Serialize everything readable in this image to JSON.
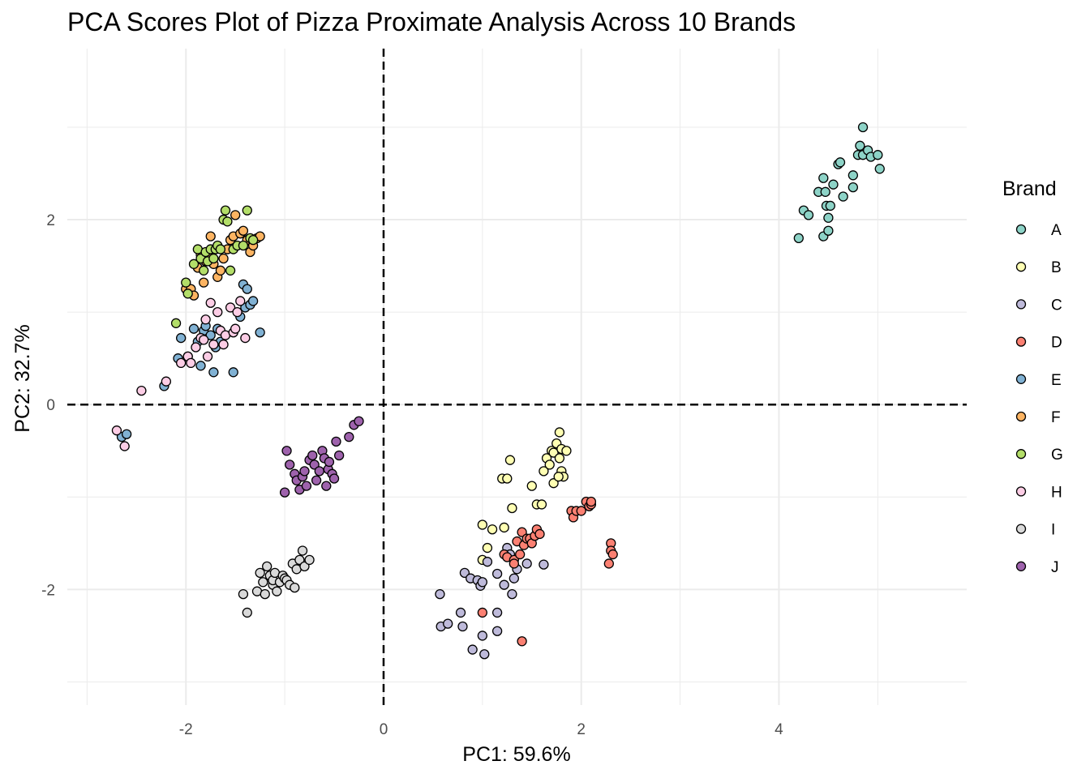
{
  "chart_data": {
    "type": "scatter",
    "title": "PCA Scores Plot of Pizza Proximate Analysis Across 10 Brands",
    "xlabel": "PC1: 59.6%",
    "ylabel": "PC2: 32.7%",
    "xlim": [
      -3.2,
      5.9
    ],
    "ylim": [
      -3.25,
      3.85
    ],
    "x_ticks": [
      -2,
      0,
      2,
      4
    ],
    "x_tick_labels": [
      "-2",
      "0",
      "2",
      "4"
    ],
    "y_ticks": [
      -2,
      0,
      2
    ],
    "y_tick_labels": [
      "-2",
      "0",
      "2"
    ],
    "grid": true,
    "reference_lines": {
      "x": 0,
      "y": 0,
      "style": "dashed"
    },
    "legend": {
      "title": "Brand",
      "position": "right"
    },
    "series": [
      {
        "name": "A",
        "color": "#8DD3C7",
        "points": [
          [
            4.2,
            1.8
          ],
          [
            4.25,
            2.1
          ],
          [
            4.3,
            2.05
          ],
          [
            4.4,
            2.3
          ],
          [
            4.45,
            1.82
          ],
          [
            4.45,
            2.45
          ],
          [
            4.47,
            2.3
          ],
          [
            4.48,
            2.15
          ],
          [
            4.5,
            2.02
          ],
          [
            4.5,
            1.88
          ],
          [
            4.52,
            2.15
          ],
          [
            4.55,
            2.38
          ],
          [
            4.6,
            2.6
          ],
          [
            4.62,
            2.62
          ],
          [
            4.65,
            2.25
          ],
          [
            4.75,
            2.35
          ],
          [
            4.75,
            2.48
          ],
          [
            4.8,
            2.7
          ],
          [
            4.82,
            2.8
          ],
          [
            4.85,
            3.0
          ],
          [
            4.85,
            2.7
          ],
          [
            4.9,
            2.75
          ],
          [
            4.93,
            2.68
          ],
          [
            5.0,
            2.7
          ],
          [
            5.02,
            2.55
          ]
        ]
      },
      {
        "name": "B",
        "color": "#FFFFB3",
        "points": [
          [
            1.0,
            -1.3
          ],
          [
            1.05,
            -1.55
          ],
          [
            1.1,
            -1.35
          ],
          [
            1.0,
            -1.68
          ],
          [
            1.2,
            -0.8
          ],
          [
            1.25,
            -0.8
          ],
          [
            1.22,
            -1.33
          ],
          [
            1.28,
            -0.6
          ],
          [
            1.3,
            -1.12
          ],
          [
            1.5,
            -0.88
          ],
          [
            1.55,
            -1.08
          ],
          [
            1.6,
            -1.08
          ],
          [
            1.62,
            -0.72
          ],
          [
            1.65,
            -0.58
          ],
          [
            1.68,
            -0.65
          ],
          [
            1.7,
            -0.5
          ],
          [
            1.72,
            -0.85
          ],
          [
            1.75,
            -0.42
          ],
          [
            1.78,
            -0.3
          ],
          [
            1.72,
            -0.52
          ],
          [
            1.78,
            -0.58
          ],
          [
            1.8,
            -0.48
          ],
          [
            1.8,
            -0.72
          ],
          [
            1.82,
            -0.78
          ],
          [
            1.85,
            -0.5
          ],
          [
            1.77,
            -0.78
          ]
        ]
      },
      {
        "name": "C",
        "color": "#BEBADA",
        "points": [
          [
            0.57,
            -2.05
          ],
          [
            0.58,
            -2.4
          ],
          [
            0.65,
            -2.37
          ],
          [
            0.78,
            -2.25
          ],
          [
            0.8,
            -2.4
          ],
          [
            0.82,
            -1.82
          ],
          [
            0.88,
            -1.88
          ],
          [
            0.9,
            -2.65
          ],
          [
            0.95,
            -1.9
          ],
          [
            0.98,
            -1.96
          ],
          [
            1.0,
            -1.92
          ],
          [
            1.0,
            -2.5
          ],
          [
            1.02,
            -2.7
          ],
          [
            1.05,
            -1.7
          ],
          [
            1.15,
            -1.83
          ],
          [
            1.15,
            -2.25
          ],
          [
            1.15,
            -2.45
          ],
          [
            1.22,
            -1.95
          ],
          [
            1.25,
            -1.55
          ],
          [
            1.28,
            -1.62
          ],
          [
            1.3,
            -2.05
          ],
          [
            1.32,
            -1.88
          ],
          [
            1.35,
            -1.78
          ],
          [
            1.45,
            -1.72
          ],
          [
            1.62,
            -1.73
          ]
        ]
      },
      {
        "name": "D",
        "color": "#FB8072",
        "points": [
          [
            1.0,
            -2.25
          ],
          [
            1.22,
            -1.62
          ],
          [
            1.25,
            -1.65
          ],
          [
            1.32,
            -1.68
          ],
          [
            1.32,
            -1.72
          ],
          [
            1.35,
            -1.48
          ],
          [
            1.38,
            -1.62
          ],
          [
            1.4,
            -1.38
          ],
          [
            1.42,
            -1.52
          ],
          [
            1.45,
            -1.45
          ],
          [
            1.48,
            -1.45
          ],
          [
            1.5,
            -1.5
          ],
          [
            1.53,
            -1.42
          ],
          [
            1.55,
            -1.35
          ],
          [
            1.58,
            -1.4
          ],
          [
            1.4,
            -2.56
          ],
          [
            1.9,
            -1.15
          ],
          [
            1.92,
            -1.22
          ],
          [
            1.95,
            -1.15
          ],
          [
            2.0,
            -1.15
          ],
          [
            2.05,
            -1.05
          ],
          [
            2.08,
            -1.1
          ],
          [
            2.1,
            -1.08
          ],
          [
            2.1,
            -1.05
          ],
          [
            2.28,
            -1.72
          ],
          [
            2.3,
            -1.5
          ],
          [
            2.3,
            -1.58
          ],
          [
            2.32,
            -1.62
          ]
        ]
      },
      {
        "name": "E",
        "color": "#80B1D3",
        "points": [
          [
            -2.65,
            -0.35
          ],
          [
            -2.6,
            -0.32
          ],
          [
            -2.22,
            0.2
          ],
          [
            -2.08,
            0.5
          ],
          [
            -2.05,
            0.72
          ],
          [
            -1.98,
            0.52
          ],
          [
            -1.92,
            0.82
          ],
          [
            -1.88,
            0.68
          ],
          [
            -1.85,
            0.42
          ],
          [
            -1.82,
            0.8
          ],
          [
            -1.8,
            0.85
          ],
          [
            -1.75,
            0.75
          ],
          [
            -1.72,
            0.35
          ],
          [
            -1.7,
            0.62
          ],
          [
            -1.68,
            0.82
          ],
          [
            -1.65,
            0.68
          ],
          [
            -1.52,
            0.35
          ],
          [
            -1.45,
            0.95
          ],
          [
            -1.42,
            1.3
          ],
          [
            -1.4,
            1.05
          ],
          [
            -1.38,
            1.25
          ],
          [
            -1.35,
            1.08
          ],
          [
            -1.32,
            1.12
          ],
          [
            -1.25,
            0.78
          ]
        ]
      },
      {
        "name": "F",
        "color": "#FDB462",
        "points": [
          [
            -2.0,
            1.25
          ],
          [
            -1.95,
            1.25
          ],
          [
            -1.92,
            1.18
          ],
          [
            -1.88,
            1.48
          ],
          [
            -1.85,
            1.62
          ],
          [
            -1.82,
            1.32
          ],
          [
            -1.8,
            1.55
          ],
          [
            -1.78,
            1.6
          ],
          [
            -1.75,
            1.82
          ],
          [
            -1.72,
            1.52
          ],
          [
            -1.68,
            1.38
          ],
          [
            -1.65,
            1.45
          ],
          [
            -1.62,
            1.58
          ],
          [
            -1.58,
            1.68
          ],
          [
            -1.55,
            1.78
          ],
          [
            -1.52,
            1.82
          ],
          [
            -1.5,
            2.05
          ],
          [
            -1.45,
            1.85
          ],
          [
            -1.42,
            1.88
          ],
          [
            -1.38,
            1.78
          ],
          [
            -1.35,
            1.65
          ],
          [
            -1.32,
            1.72
          ],
          [
            -1.28,
            1.8
          ],
          [
            -1.25,
            1.82
          ]
        ]
      },
      {
        "name": "G",
        "color": "#B3DE69",
        "points": [
          [
            -2.1,
            0.88
          ],
          [
            -2.0,
            1.32
          ],
          [
            -1.98,
            1.2
          ],
          [
            -1.92,
            1.52
          ],
          [
            -1.88,
            1.68
          ],
          [
            -1.85,
            1.58
          ],
          [
            -1.82,
            1.45
          ],
          [
            -1.8,
            1.65
          ],
          [
            -1.78,
            1.55
          ],
          [
            -1.75,
            1.68
          ],
          [
            -1.72,
            1.58
          ],
          [
            -1.7,
            1.68
          ],
          [
            -1.68,
            1.72
          ],
          [
            -1.65,
            1.68
          ],
          [
            -1.62,
            2.0
          ],
          [
            -1.6,
            2.1
          ],
          [
            -1.58,
            1.98
          ],
          [
            -1.55,
            1.45
          ],
          [
            -1.52,
            1.68
          ],
          [
            -1.48,
            1.72
          ],
          [
            -1.42,
            1.72
          ],
          [
            -1.38,
            2.1
          ],
          [
            -1.35,
            1.8
          ],
          [
            -1.32,
            1.78
          ]
        ]
      },
      {
        "name": "H",
        "color": "#FCCDE5",
        "points": [
          [
            -2.7,
            -0.28
          ],
          [
            -2.62,
            -0.45
          ],
          [
            -2.45,
            0.15
          ],
          [
            -2.2,
            0.25
          ],
          [
            -2.05,
            0.45
          ],
          [
            -1.98,
            0.52
          ],
          [
            -1.95,
            0.45
          ],
          [
            -1.9,
            0.62
          ],
          [
            -1.85,
            0.72
          ],
          [
            -1.82,
            0.7
          ],
          [
            -1.8,
            0.92
          ],
          [
            -1.78,
            0.52
          ],
          [
            -1.75,
            1.1
          ],
          [
            -1.72,
            0.65
          ],
          [
            -1.68,
            1.0
          ],
          [
            -1.65,
            0.8
          ],
          [
            -1.62,
            0.65
          ],
          [
            -1.6,
            0.75
          ],
          [
            -1.55,
            1.05
          ],
          [
            -1.52,
            0.78
          ],
          [
            -1.5,
            0.82
          ],
          [
            -1.48,
            1.0
          ],
          [
            -1.45,
            1.12
          ],
          [
            -1.4,
            0.72
          ]
        ]
      },
      {
        "name": "I",
        "color": "#D9D9D9",
        "points": [
          [
            -1.42,
            -2.05
          ],
          [
            -1.38,
            -2.25
          ],
          [
            -1.28,
            -2.02
          ],
          [
            -1.25,
            -1.82
          ],
          [
            -1.22,
            -1.92
          ],
          [
            -1.2,
            -2.05
          ],
          [
            -1.18,
            -1.75
          ],
          [
            -1.15,
            -1.85
          ],
          [
            -1.12,
            -1.95
          ],
          [
            -1.12,
            -1.9
          ],
          [
            -1.1,
            -1.82
          ],
          [
            -1.08,
            -2.02
          ],
          [
            -1.05,
            -1.92
          ],
          [
            -1.02,
            -1.85
          ],
          [
            -1.0,
            -1.88
          ],
          [
            -0.98,
            -1.9
          ],
          [
            -0.95,
            -1.95
          ],
          [
            -0.92,
            -1.72
          ],
          [
            -0.9,
            -1.98
          ],
          [
            -0.88,
            -1.78
          ],
          [
            -0.85,
            -1.68
          ],
          [
            -0.82,
            -1.58
          ],
          [
            -0.8,
            -1.75
          ],
          [
            -0.75,
            -1.68
          ]
        ]
      },
      {
        "name": "J",
        "color": "#9E62AC",
        "points": [
          [
            -1.0,
            -0.95
          ],
          [
            -0.98,
            -0.5
          ],
          [
            -0.95,
            -0.65
          ],
          [
            -0.9,
            -0.75
          ],
          [
            -0.88,
            -0.82
          ],
          [
            -0.85,
            -0.92
          ],
          [
            -0.82,
            -0.78
          ],
          [
            -0.8,
            -0.72
          ],
          [
            -0.78,
            -0.88
          ],
          [
            -0.75,
            -0.6
          ],
          [
            -0.72,
            -0.55
          ],
          [
            -0.7,
            -0.65
          ],
          [
            -0.68,
            -0.82
          ],
          [
            -0.65,
            -0.72
          ],
          [
            -0.62,
            -0.5
          ],
          [
            -0.6,
            -0.58
          ],
          [
            -0.58,
            -0.88
          ],
          [
            -0.56,
            -0.7
          ],
          [
            -0.55,
            -0.62
          ],
          [
            -0.52,
            -0.75
          ],
          [
            -0.5,
            -0.8
          ],
          [
            -0.48,
            -0.4
          ],
          [
            -0.45,
            -0.55
          ],
          [
            -0.35,
            -0.35
          ],
          [
            -0.3,
            -0.22
          ],
          [
            -0.25,
            -0.18
          ]
        ]
      }
    ]
  }
}
